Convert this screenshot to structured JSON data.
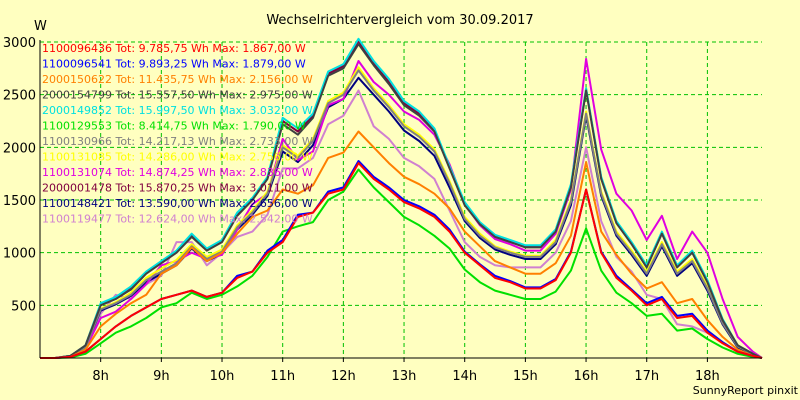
{
  "chart_data": {
    "type": "line",
    "title": "Wechselrichtervergleich vom 30.09.2017",
    "ylabel": "W",
    "footer": "SunnyReport pinxit",
    "ylim": [
      0,
      3000
    ],
    "yticks": [
      "500",
      "1000",
      "1500",
      "2000",
      "2500",
      "3000"
    ],
    "xlim": [
      7.0,
      18.9
    ],
    "xticks": [
      "8h",
      "9h",
      "10h",
      "11h",
      "12h",
      "13h",
      "14h",
      "15h",
      "16h",
      "17h",
      "18h"
    ],
    "grid": true,
    "legend_position": "top-left",
    "x": [
      7.0,
      7.25,
      7.5,
      7.75,
      8.0,
      8.25,
      8.5,
      8.75,
      9.0,
      9.25,
      9.5,
      9.75,
      10.0,
      10.25,
      10.5,
      10.75,
      11.0,
      11.25,
      11.5,
      11.75,
      12.0,
      12.25,
      12.5,
      12.75,
      13.0,
      13.25,
      13.5,
      13.75,
      14.0,
      14.25,
      14.5,
      14.75,
      15.0,
      15.25,
      15.5,
      15.75,
      16.0,
      16.25,
      16.5,
      16.75,
      17.0,
      17.25,
      17.5,
      17.75,
      18.0,
      18.25,
      18.5,
      18.75,
      18.9
    ],
    "series": [
      {
        "name": "1100096436",
        "legend": "1100096436 Tot: 9.785,75 Wh Max: 1.867,00 W",
        "color": "#ff0000",
        "values": [
          0,
          0,
          10,
          60,
          180,
          300,
          400,
          480,
          560,
          600,
          640,
          580,
          620,
          760,
          820,
          1000,
          1100,
          1340,
          1380,
          1560,
          1600,
          1850,
          1700,
          1600,
          1480,
          1420,
          1340,
          1200,
          1000,
          880,
          760,
          720,
          660,
          660,
          740,
          1000,
          1600,
          1000,
          760,
          640,
          500,
          560,
          380,
          400,
          240,
          140,
          60,
          20,
          0
        ]
      },
      {
        "name": "1100096541",
        "legend": "1100096541 Tot: 9.893,25 Wh Max: 1.879,00 W",
        "color": "#0000ff",
        "values": [
          0,
          0,
          10,
          60,
          180,
          300,
          400,
          480,
          560,
          600,
          640,
          580,
          620,
          780,
          820,
          1020,
          1120,
          1360,
          1380,
          1580,
          1620,
          1870,
          1720,
          1620,
          1500,
          1440,
          1360,
          1220,
          1010,
          890,
          780,
          730,
          670,
          670,
          750,
          1010,
          1600,
          1010,
          780,
          650,
          520,
          580,
          400,
          420,
          260,
          150,
          60,
          20,
          0
        ]
      },
      {
        "name": "2000150622",
        "legend": "2000150622 Tot: 11.435,75 Wh Max: 2.156,00 W",
        "color": "#ff8000",
        "values": [
          0,
          0,
          10,
          80,
          300,
          420,
          520,
          600,
          800,
          880,
          1050,
          920,
          1000,
          1180,
          1340,
          1400,
          1600,
          1560,
          1640,
          1900,
          1950,
          2150,
          2000,
          1850,
          1720,
          1650,
          1560,
          1420,
          1200,
          1060,
          920,
          860,
          800,
          800,
          900,
          1160,
          1860,
          1200,
          980,
          800,
          660,
          720,
          520,
          560,
          360,
          200,
          80,
          20,
          0
        ]
      },
      {
        "name": "2000154799",
        "legend": "2000154799 Tot: 15.557,50 Wh Max: 2.975,00 W",
        "color": "#404040",
        "values": [
          0,
          0,
          20,
          120,
          500,
          560,
          650,
          800,
          900,
          1000,
          1150,
          1020,
          1100,
          1350,
          1500,
          1700,
          2220,
          2120,
          2280,
          2680,
          2750,
          2980,
          2780,
          2600,
          2400,
          2300,
          2150,
          1800,
          1450,
          1270,
          1150,
          1100,
          1050,
          1050,
          1200,
          1620,
          2540,
          1700,
          1280,
          1080,
          860,
          1180,
          860,
          1000,
          720,
          360,
          120,
          40,
          0
        ]
      },
      {
        "name": "2000149852",
        "legend": "2000149852 Tot: 15.997,50 Wh Max: 3.032,00 W",
        "color": "#00e0e0",
        "values": [
          0,
          0,
          20,
          120,
          520,
          580,
          680,
          820,
          920,
          1020,
          1180,
          1040,
          1120,
          1380,
          1520,
          1720,
          2280,
          2180,
          2320,
          2720,
          2790,
          3030,
          2820,
          2650,
          2440,
          2340,
          2180,
          1820,
          1480,
          1290,
          1170,
          1120,
          1070,
          1070,
          1220,
          1650,
          2560,
          1720,
          1300,
          1100,
          880,
          1200,
          880,
          1020,
          740,
          370,
          120,
          40,
          0
        ]
      },
      {
        "name": "1100129553",
        "legend": "1100129553 Tot: 8.414,75 Wh Max: 1.790,00 W",
        "color": "#00e000",
        "values": [
          0,
          0,
          5,
          40,
          140,
          240,
          300,
          380,
          480,
          520,
          620,
          560,
          600,
          680,
          780,
          960,
          1200,
          1250,
          1290,
          1500,
          1580,
          1790,
          1620,
          1480,
          1340,
          1260,
          1160,
          1040,
          840,
          720,
          640,
          600,
          560,
          560,
          630,
          830,
          1230,
          830,
          620,
          520,
          400,
          420,
          260,
          280,
          180,
          100,
          40,
          10,
          0
        ]
      },
      {
        "name": "1100130966",
        "legend": "1100130966 Tot: 14.217,13 Wh Max: 2.733,00 W",
        "color": "#808080",
        "values": [
          0,
          0,
          20,
          100,
          460,
          520,
          600,
          740,
          820,
          900,
          1060,
          940,
          1010,
          1240,
          1380,
          1560,
          2000,
          1900,
          2060,
          2420,
          2500,
          2730,
          2540,
          2380,
          2200,
          2100,
          1960,
          1660,
          1320,
          1160,
          1050,
          1000,
          960,
          960,
          1100,
          1480,
          2320,
          1560,
          1180,
          1000,
          800,
          1080,
          800,
          920,
          660,
          330,
          110,
          40,
          0
        ]
      },
      {
        "name": "1100131085",
        "legend": "1100131085 Tot: 14.286,00 Wh Max: 2.756,00 W",
        "color": "#ffff00",
        "values": [
          0,
          0,
          20,
          110,
          470,
          530,
          620,
          760,
          850,
          930,
          1080,
          960,
          1030,
          1260,
          1400,
          1580,
          2020,
          1920,
          2080,
          2440,
          2520,
          2760,
          2560,
          2400,
          2220,
          2120,
          1980,
          1680,
          1340,
          1180,
          1060,
          1010,
          970,
          970,
          1120,
          1500,
          2340,
          1580,
          1200,
          1020,
          820,
          1100,
          820,
          940,
          680,
          340,
          110,
          40,
          0
        ]
      },
      {
        "name": "1100131074",
        "legend": "1100131074 Tot: 14.874,25 Wh Max: 2.836,00 W",
        "color": "#e000e0",
        "values": [
          0,
          0,
          15,
          90,
          380,
          440,
          560,
          700,
          880,
          920,
          1000,
          940,
          980,
          1220,
          1460,
          1560,
          2080,
          1880,
          1960,
          2400,
          2460,
          2820,
          2620,
          2500,
          2340,
          2260,
          2120,
          1840,
          1460,
          1260,
          1130,
          1080,
          1020,
          1020,
          1180,
          1600,
          2840,
          1980,
          1560,
          1400,
          1120,
          1350,
          940,
          1200,
          1000,
          560,
          200,
          60,
          0
        ]
      },
      {
        "name": "2000001478",
        "legend": "2000001478 Tot: 15.870,25 Wh Max: 3.011,00 W",
        "color": "#800040",
        "values": [
          0,
          0,
          20,
          120,
          510,
          570,
          670,
          810,
          910,
          1010,
          1160,
          1030,
          1110,
          1360,
          1510,
          1710,
          2250,
          2150,
          2300,
          2700,
          2770,
          3010,
          2800,
          2620,
          2420,
          2320,
          2160,
          1810,
          1460,
          1280,
          1160,
          1110,
          1060,
          1060,
          1210,
          1630,
          2550,
          1710,
          1290,
          1090,
          870,
          1190,
          870,
          1010,
          730,
          360,
          120,
          40,
          0
        ]
      },
      {
        "name": "1100148421",
        "legend": "1100148421 Tot: 13.590,00 Wh Max: 2.656,00 W",
        "color": "#000080",
        "values": [
          0,
          0,
          20,
          100,
          450,
          510,
          590,
          720,
          800,
          880,
          1040,
          920,
          990,
          1220,
          1360,
          1540,
          1960,
          1860,
          2020,
          2380,
          2460,
          2660,
          2500,
          2340,
          2160,
          2060,
          1920,
          1620,
          1300,
          1140,
          1030,
          980,
          940,
          940,
          1080,
          1450,
          2300,
          1540,
          1160,
          980,
          780,
          1060,
          780,
          900,
          640,
          320,
          100,
          40,
          0
        ]
      },
      {
        "name": "1100119477",
        "legend": "1100119477 Tot: 12.624,00 Wh Max: 2.542,00 W",
        "color": "#d080d0",
        "values": [
          0,
          0,
          15,
          80,
          420,
          600,
          560,
          700,
          780,
          1100,
          1100,
          880,
          1000,
          1150,
          1200,
          1360,
          1800,
          1800,
          1900,
          2220,
          2300,
          2540,
          2200,
          2080,
          1900,
          1820,
          1700,
          1400,
          1100,
          960,
          880,
          860,
          860,
          860,
          1000,
          1300,
          2000,
          1300,
          960,
          820,
          600,
          560,
          320,
          300,
          240,
          150,
          60,
          20,
          0
        ]
      }
    ]
  }
}
